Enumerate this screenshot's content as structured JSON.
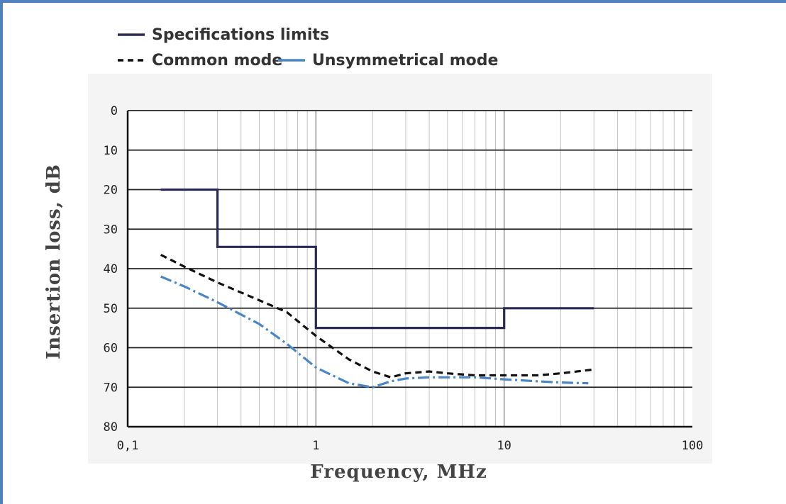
{
  "chart_data": {
    "type": "line",
    "xscale": "log",
    "xlim": [
      0.1,
      100
    ],
    "ylim": [
      0,
      80
    ],
    "y_inverted": true,
    "grid": true,
    "legend_position": "top-left",
    "xlabel": "Frequency, MHz",
    "ylabel": "Insertion loss, dB",
    "x_tick_labels": [
      {
        "value": 0.1,
        "label": "0,1"
      },
      {
        "value": 1,
        "label": "1"
      },
      {
        "value": 10,
        "label": "10"
      },
      {
        "value": 100,
        "label": "100"
      }
    ],
    "y_tick_labels": [
      {
        "value": 0,
        "label": "0"
      },
      {
        "value": 10,
        "label": "10"
      },
      {
        "value": 20,
        "label": "20"
      },
      {
        "value": 30,
        "label": "30"
      },
      {
        "value": 40,
        "label": "40"
      },
      {
        "value": 50,
        "label": "50"
      },
      {
        "value": 60,
        "label": "60"
      },
      {
        "value": 70,
        "label": "70"
      },
      {
        "value": 80,
        "label": "80"
      }
    ],
    "series": [
      {
        "name": "Specifications limits",
        "color": "#2a2a55",
        "style": "solid",
        "x": [
          0.15,
          0.3,
          0.3,
          1,
          1,
          10,
          10,
          30
        ],
        "y": [
          20,
          20,
          34.5,
          34.5,
          55,
          55,
          50,
          50
        ]
      },
      {
        "name": "Common mode",
        "color": "#111111",
        "style": "dashed",
        "x": [
          0.15,
          0.2,
          0.3,
          0.5,
          0.7,
          1,
          1.5,
          2,
          2.5,
          3,
          4,
          5,
          7,
          10,
          15,
          20,
          30
        ],
        "y": [
          36.5,
          39.5,
          43.5,
          48,
          51,
          57,
          63,
          66,
          67.5,
          66.5,
          66,
          66.5,
          67,
          67,
          67,
          66.5,
          65.5
        ]
      },
      {
        "name": "Unsymmetrical mode",
        "color": "#4a86c5",
        "style": "dashdot",
        "x": [
          0.15,
          0.2,
          0.3,
          0.5,
          0.7,
          1,
          1.5,
          2,
          2.5,
          3,
          4,
          5,
          7,
          10,
          15,
          20,
          28
        ],
        "y": [
          42,
          44.5,
          48.5,
          54,
          59,
          65,
          69,
          70,
          68.5,
          67.8,
          67.5,
          67.5,
          67.5,
          68,
          68.5,
          68.8,
          69
        ]
      }
    ]
  }
}
